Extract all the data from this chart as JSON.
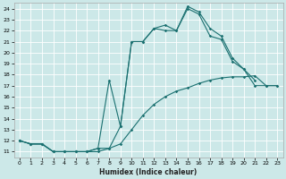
{
  "xlabel": "Humidex (Indice chaleur)",
  "bg_color": "#cce8e8",
  "line_color": "#1a7070",
  "grid_color": "#ffffff",
  "xlim": [
    -0.5,
    23.5
  ],
  "ylim": [
    10.5,
    24.5
  ],
  "xticks": [
    0,
    1,
    2,
    3,
    4,
    5,
    6,
    7,
    8,
    9,
    10,
    11,
    12,
    13,
    14,
    15,
    16,
    17,
    18,
    19,
    20,
    21,
    22,
    23
  ],
  "yticks": [
    11,
    12,
    13,
    14,
    15,
    16,
    17,
    18,
    19,
    20,
    21,
    22,
    23,
    24
  ],
  "curve1_x": [
    0,
    1,
    2,
    3,
    4,
    5,
    6,
    7,
    8,
    9,
    10,
    11,
    12,
    13,
    14,
    15,
    16,
    17,
    18,
    19,
    20,
    21,
    22,
    23
  ],
  "curve1_y": [
    12,
    11.7,
    11.7,
    11,
    11,
    11,
    11,
    11,
    11.3,
    11.7,
    13,
    14.3,
    15.3,
    16,
    16.5,
    16.8,
    17.2,
    17.5,
    17.7,
    17.8,
    17.8,
    17.9,
    17.0,
    17.0
  ],
  "curve2_x": [
    0,
    1,
    2,
    3,
    4,
    5,
    6,
    7,
    8,
    9,
    10,
    11,
    12,
    13,
    14,
    15,
    16,
    17,
    18,
    19,
    20,
    21
  ],
  "curve2_y": [
    12,
    11.7,
    11.7,
    11,
    11,
    11,
    11,
    11.3,
    17.5,
    13.3,
    21.0,
    21.0,
    22.2,
    22.5,
    22.0,
    24.2,
    23.7,
    22.2,
    21.5,
    19.5,
    18.5,
    17.5
  ],
  "curve3_x": [
    0,
    1,
    2,
    3,
    4,
    5,
    6,
    7,
    8,
    9,
    10,
    11,
    12,
    13,
    14,
    15,
    16,
    17,
    18,
    19,
    20,
    21,
    22,
    23
  ],
  "curve3_y": [
    12,
    11.7,
    11.7,
    11,
    11,
    11,
    11,
    11.3,
    11.3,
    13.3,
    21.0,
    21.0,
    22.2,
    22.0,
    22.0,
    24.0,
    23.5,
    21.5,
    21.2,
    19.2,
    18.5,
    17.0,
    17.0,
    17.0
  ]
}
